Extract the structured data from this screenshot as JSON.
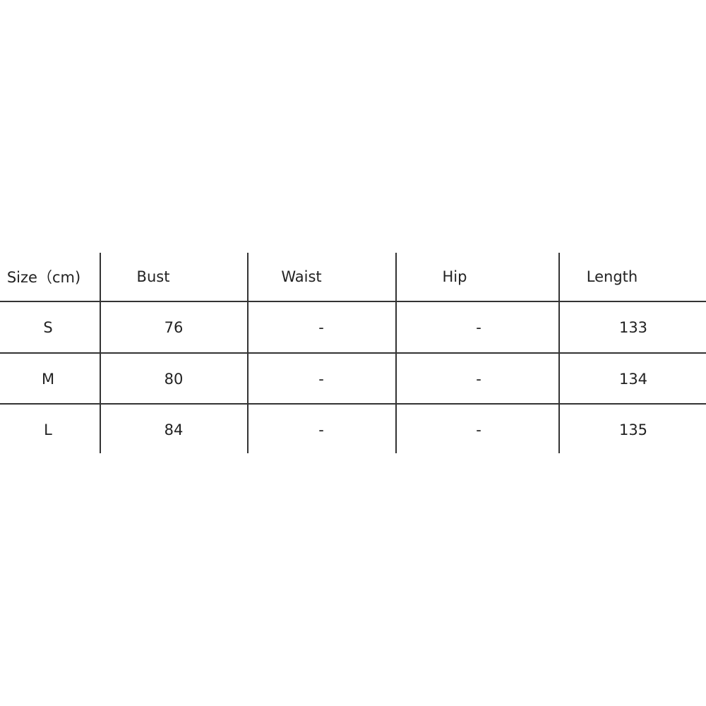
{
  "table": {
    "headers": [
      "Size（cm)",
      "Bust",
      "Waist",
      "Hip",
      "Length"
    ],
    "rows": [
      [
        "S",
        "76",
        "-",
        "-",
        "133"
      ],
      [
        "M",
        "80",
        "-",
        "-",
        "134"
      ],
      [
        "L",
        "84",
        "-",
        "-",
        "135"
      ]
    ]
  }
}
